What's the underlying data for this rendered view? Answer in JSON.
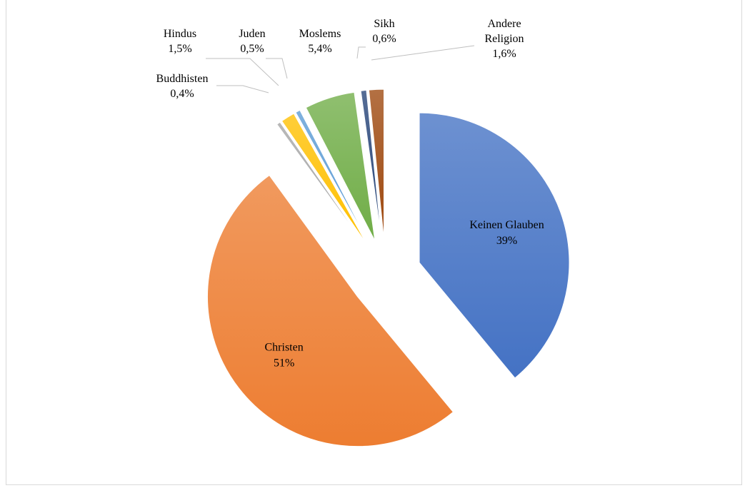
{
  "chart_data": {
    "type": "pie",
    "title": "",
    "slices": [
      {
        "label": "Keinen Glauben",
        "value_text": "39%",
        "value": 39.0,
        "color": "#4472C4",
        "label_inside": true
      },
      {
        "label": "Christen",
        "value_text": "51%",
        "value": 51.0,
        "color": "#ED7D31",
        "label_inside": true
      },
      {
        "label": "Buddhisten",
        "value_text": "0,4%",
        "value": 0.4,
        "color": "#A5A5A5",
        "label_inside": false
      },
      {
        "label": "Hindus",
        "value_text": "1,5%",
        "value": 1.5,
        "color": "#FFC000",
        "label_inside": false
      },
      {
        "label": "Juden",
        "value_text": "0,5%",
        "value": 0.5,
        "color": "#5B9BD5",
        "label_inside": false
      },
      {
        "label": "Moslems",
        "value_text": "5,4%",
        "value": 5.4,
        "color": "#70AD47",
        "label_inside": false
      },
      {
        "label": "Sikh",
        "value_text": "0,6%",
        "value": 0.6,
        "color": "#264478",
        "label_inside": false
      },
      {
        "label": "Andere Religion",
        "value_text": "1,6%",
        "value": 1.6,
        "color": "#9E480E",
        "label_inside": false
      }
    ],
    "exploded": true,
    "legend": "none"
  }
}
